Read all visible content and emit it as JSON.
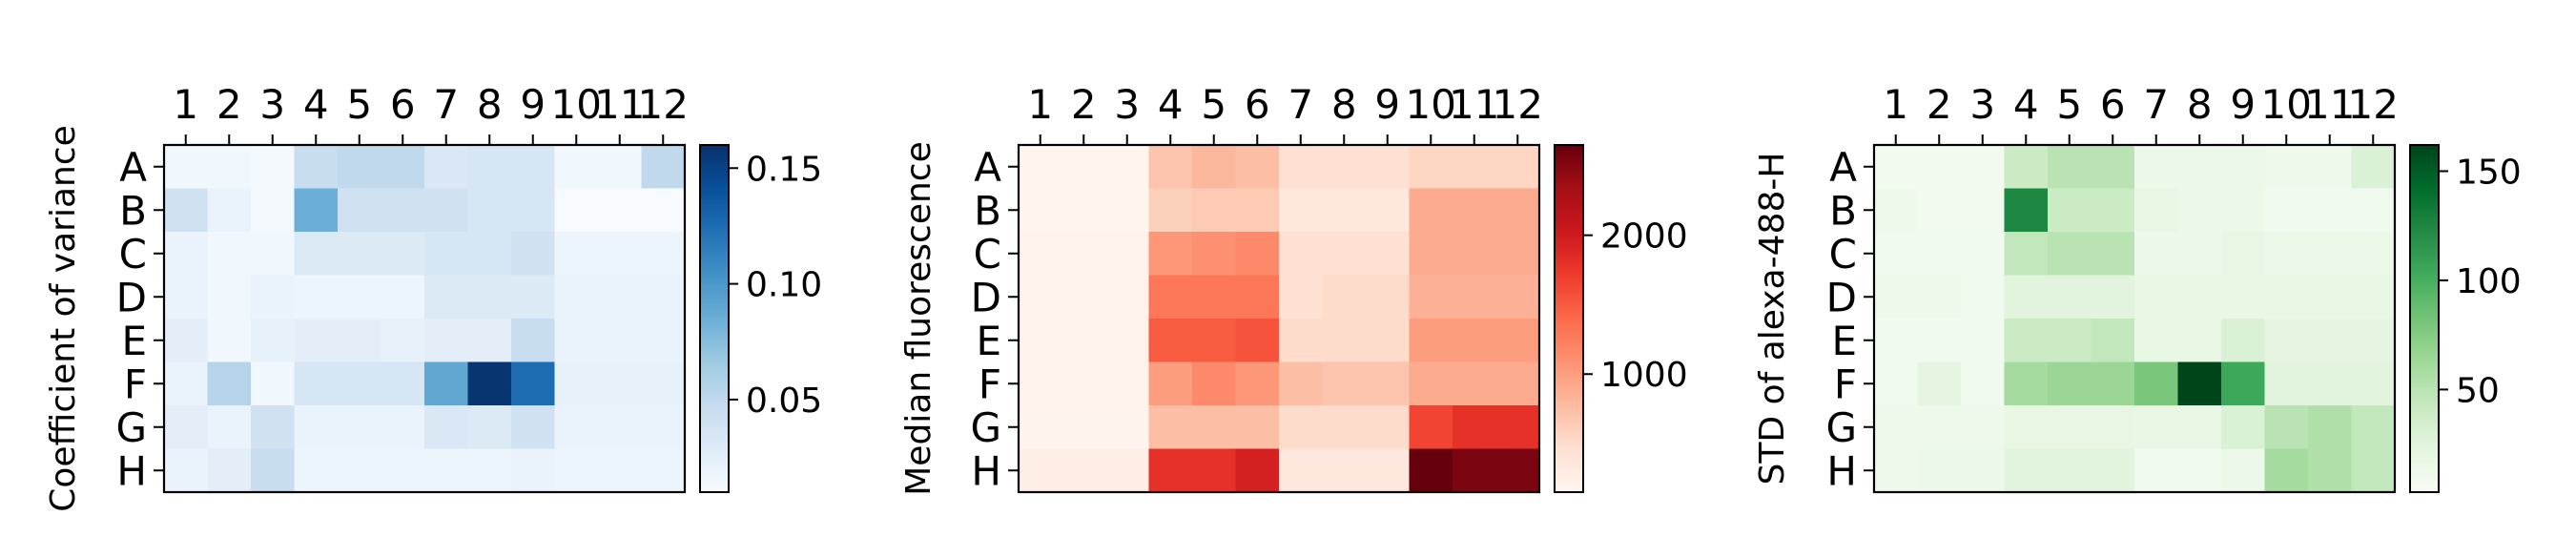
{
  "chart_data": [
    {
      "type": "heatmap",
      "title": "",
      "xlabel": "",
      "ylabel": "Coefficient of variance",
      "colormap": "Blues",
      "columns": [
        "1",
        "2",
        "3",
        "4",
        "5",
        "6",
        "7",
        "8",
        "9",
        "10",
        "11",
        "12"
      ],
      "rows": [
        "A",
        "B",
        "C",
        "D",
        "E",
        "F",
        "G",
        "H"
      ],
      "vmin": 0.01,
      "vmax": 0.16,
      "colorbar_ticks": [
        0.05,
        0.1,
        0.15
      ],
      "colorbar_tick_labels": [
        "0.05",
        "0.10",
        "0.15"
      ],
      "values": [
        [
          0.015,
          0.015,
          0.012,
          0.045,
          0.05,
          0.05,
          0.032,
          0.035,
          0.035,
          0.015,
          0.015,
          0.05
        ],
        [
          0.04,
          0.02,
          0.012,
          0.085,
          0.04,
          0.04,
          0.04,
          0.035,
          0.035,
          0.01,
          0.01,
          0.01
        ],
        [
          0.02,
          0.015,
          0.015,
          0.03,
          0.03,
          0.03,
          0.035,
          0.035,
          0.04,
          0.018,
          0.018,
          0.018
        ],
        [
          0.02,
          0.015,
          0.02,
          0.018,
          0.018,
          0.018,
          0.03,
          0.03,
          0.03,
          0.02,
          0.02,
          0.02
        ],
        [
          0.025,
          0.015,
          0.022,
          0.025,
          0.025,
          0.022,
          0.025,
          0.025,
          0.045,
          0.02,
          0.02,
          0.02
        ],
        [
          0.02,
          0.055,
          0.015,
          0.035,
          0.035,
          0.035,
          0.09,
          0.158,
          0.125,
          0.022,
          0.022,
          0.022
        ],
        [
          0.025,
          0.02,
          0.04,
          0.02,
          0.02,
          0.02,
          0.032,
          0.03,
          0.04,
          0.02,
          0.02,
          0.02
        ],
        [
          0.02,
          0.025,
          0.045,
          0.018,
          0.018,
          0.018,
          0.018,
          0.018,
          0.02,
          0.018,
          0.018,
          0.018
        ]
      ]
    },
    {
      "type": "heatmap",
      "title": "",
      "xlabel": "",
      "ylabel": "Median fluorescence",
      "colormap": "Reds",
      "columns": [
        "1",
        "2",
        "3",
        "4",
        "5",
        "6",
        "7",
        "8",
        "9",
        "10",
        "11",
        "12"
      ],
      "rows": [
        "A",
        "B",
        "C",
        "D",
        "E",
        "F",
        "G",
        "H"
      ],
      "vmin": 150,
      "vmax": 2650,
      "colorbar_ticks": [
        1000,
        2000
      ],
      "colorbar_tick_labels": [
        "1000",
        "2000"
      ],
      "values": [
        [
          170,
          170,
          170,
          700,
          800,
          750,
          450,
          450,
          450,
          550,
          550,
          550
        ],
        [
          170,
          170,
          170,
          600,
          650,
          650,
          350,
          350,
          350,
          900,
          900,
          900
        ],
        [
          200,
          200,
          200,
          1050,
          1100,
          1150,
          450,
          450,
          450,
          900,
          900,
          900
        ],
        [
          200,
          200,
          200,
          1300,
          1300,
          1300,
          450,
          500,
          500,
          850,
          850,
          850
        ],
        [
          200,
          200,
          200,
          1500,
          1500,
          1550,
          500,
          500,
          500,
          1000,
          1000,
          1000
        ],
        [
          200,
          200,
          200,
          1000,
          1150,
          1050,
          750,
          700,
          700,
          900,
          900,
          900
        ],
        [
          180,
          180,
          180,
          750,
          750,
          750,
          500,
          500,
          500,
          1650,
          1800,
          1800
        ],
        [
          250,
          250,
          250,
          1800,
          1800,
          1950,
          350,
          350,
          350,
          2650,
          2550,
          2550
        ]
      ]
    },
    {
      "type": "heatmap",
      "title": "",
      "xlabel": "",
      "ylabel": "STD  of alexa-488-H",
      "colormap": "Greens",
      "columns": [
        "1",
        "2",
        "3",
        "4",
        "5",
        "6",
        "7",
        "8",
        "9",
        "10",
        "11",
        "12"
      ],
      "rows": [
        "A",
        "B",
        "C",
        "D",
        "E",
        "F",
        "G",
        "H"
      ],
      "vmin": 3,
      "vmax": 162,
      "colorbar_ticks": [
        50,
        100,
        150
      ],
      "colorbar_tick_labels": [
        "50",
        "100",
        "150"
      ],
      "values": [
        [
          8,
          8,
          8,
          40,
          50,
          50,
          15,
          15,
          15,
          12,
          12,
          30
        ],
        [
          12,
          8,
          8,
          125,
          40,
          40,
          20,
          15,
          15,
          10,
          10,
          10
        ],
        [
          10,
          10,
          10,
          45,
          50,
          50,
          15,
          15,
          20,
          15,
          15,
          15
        ],
        [
          12,
          12,
          10,
          25,
          25,
          25,
          18,
          18,
          18,
          18,
          18,
          18
        ],
        [
          10,
          10,
          10,
          40,
          40,
          45,
          18,
          18,
          30,
          22,
          22,
          22
        ],
        [
          10,
          22,
          10,
          60,
          65,
          65,
          80,
          162,
          105,
          25,
          25,
          25
        ],
        [
          12,
          12,
          12,
          20,
          20,
          20,
          18,
          18,
          30,
          50,
          55,
          45
        ],
        [
          12,
          15,
          15,
          25,
          25,
          25,
          10,
          10,
          15,
          60,
          55,
          45
        ]
      ]
    }
  ]
}
